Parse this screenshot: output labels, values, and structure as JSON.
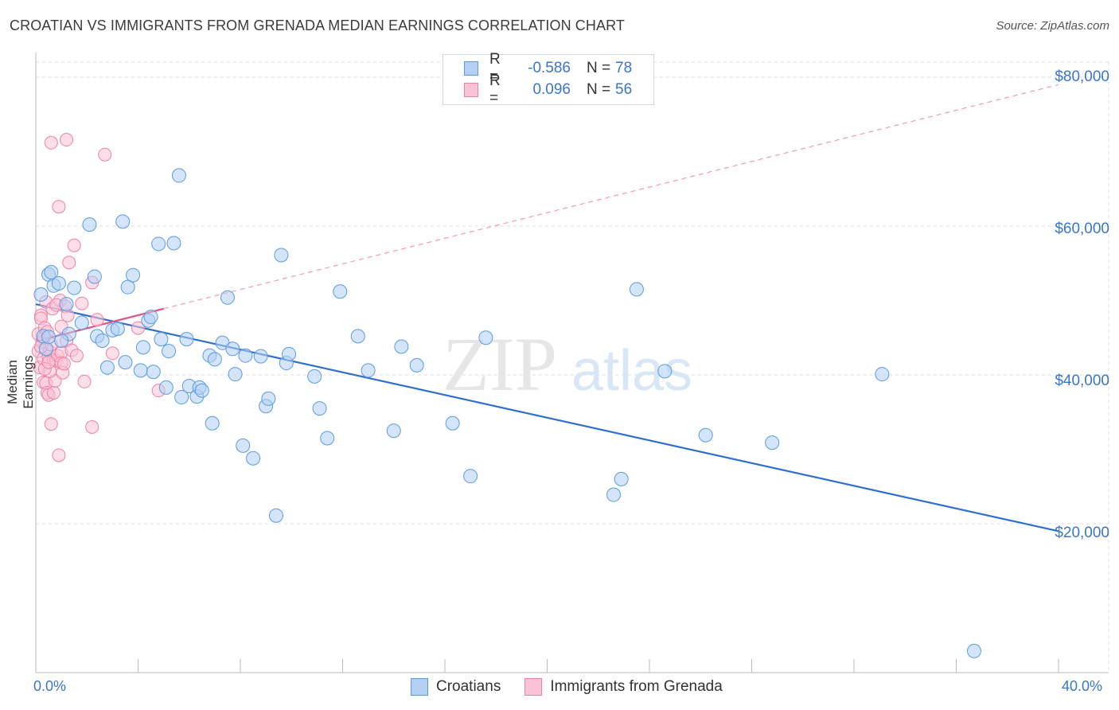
{
  "header": {
    "title": "CROATIAN VS IMMIGRANTS FROM GRENADA MEDIAN EARNINGS CORRELATION CHART",
    "source": "Source: ZipAtlas.com"
  },
  "colors": {
    "blue": "#5b9be0",
    "blue_fill": "#b3cff4",
    "blue_line": "#2f6fce",
    "pink": "#f080a8",
    "pink_fill": "#f9c3d5",
    "pink_line": "#e0508a",
    "axis_text": "#3a76c8",
    "grid": "#dddddd"
  },
  "legend_top": {
    "rows": [
      {
        "label": "R =",
        "r": "-0.586",
        "n_label": "N =",
        "n": "78"
      },
      {
        "label": "R =",
        "r": "0.096",
        "n_label": "N =",
        "n": "56"
      }
    ]
  },
  "legend_bottom": {
    "items": [
      "Croatians",
      "Immigrants from Grenada"
    ]
  },
  "watermark": {
    "zip": "ZIP",
    "atlas": "atlas"
  },
  "chart_data": {
    "type": "scatter",
    "title": "CROATIAN VS IMMIGRANTS FROM GRENADA MEDIAN EARNINGS CORRELATION CHART",
    "xlabel": "",
    "ylabel": "Median Earnings",
    "xlim": [
      0,
      40
    ],
    "ylim": [
      0,
      84000
    ],
    "x_tick_labels": [
      "0.0%",
      "40.0%"
    ],
    "y_ticks": [
      20000,
      40000,
      60000,
      80000
    ],
    "y_tick_labels": [
      "$20,000",
      "$40,000",
      "$60,000",
      "$80,000"
    ],
    "grid": true,
    "series": [
      {
        "name": "Croatians",
        "r": -0.586,
        "n": 78,
        "trend": {
          "x0": 0,
          "y0": 49500,
          "x1": 40,
          "y1": 19000
        },
        "points": [
          [
            0.2,
            50800
          ],
          [
            0.3,
            45200
          ],
          [
            0.4,
            43500
          ],
          [
            0.5,
            53500
          ],
          [
            0.6,
            53800
          ],
          [
            0.7,
            52000
          ],
          [
            0.9,
            52300
          ],
          [
            1.2,
            49500
          ],
          [
            1.3,
            45500
          ],
          [
            1.5,
            51700
          ],
          [
            1.8,
            47000
          ],
          [
            2.1,
            60200
          ],
          [
            2.3,
            53200
          ],
          [
            2.4,
            45200
          ],
          [
            2.6,
            44600
          ],
          [
            2.8,
            41000
          ],
          [
            3.0,
            46000
          ],
          [
            3.2,
            46200
          ],
          [
            3.4,
            60600
          ],
          [
            3.5,
            41700
          ],
          [
            3.6,
            51800
          ],
          [
            3.8,
            53400
          ],
          [
            4.1,
            40600
          ],
          [
            4.2,
            43700
          ],
          [
            4.4,
            47300
          ],
          [
            4.5,
            47800
          ],
          [
            4.6,
            40400
          ],
          [
            4.8,
            57600
          ],
          [
            4.9,
            44800
          ],
          [
            5.1,
            38300
          ],
          [
            5.2,
            43200
          ],
          [
            5.4,
            57700
          ],
          [
            5.6,
            66800
          ],
          [
            5.7,
            37000
          ],
          [
            5.9,
            44800
          ],
          [
            6.0,
            38500
          ],
          [
            6.3,
            37100
          ],
          [
            6.4,
            38300
          ],
          [
            6.5,
            37900
          ],
          [
            6.8,
            42600
          ],
          [
            6.9,
            33500
          ],
          [
            7.0,
            42100
          ],
          [
            7.3,
            44300
          ],
          [
            7.5,
            50400
          ],
          [
            7.7,
            43500
          ],
          [
            7.8,
            40100
          ],
          [
            8.2,
            42600
          ],
          [
            8.1,
            30500
          ],
          [
            8.5,
            28800
          ],
          [
            8.8,
            42500
          ],
          [
            9.0,
            35800
          ],
          [
            9.1,
            36800
          ],
          [
            9.4,
            21100
          ],
          [
            9.6,
            56100
          ],
          [
            9.8,
            41600
          ],
          [
            9.9,
            42800
          ],
          [
            10.9,
            39800
          ],
          [
            11.1,
            35500
          ],
          [
            11.4,
            31500
          ],
          [
            11.9,
            51200
          ],
          [
            12.6,
            45200
          ],
          [
            13.0,
            40600
          ],
          [
            14.0,
            32500
          ],
          [
            14.3,
            43800
          ],
          [
            14.9,
            41300
          ],
          [
            16.3,
            33500
          ],
          [
            17.0,
            26400
          ],
          [
            17.6,
            45000
          ],
          [
            22.6,
            23900
          ],
          [
            22.9,
            26000
          ],
          [
            23.5,
            51500
          ],
          [
            24.6,
            40500
          ],
          [
            26.2,
            31900
          ],
          [
            28.8,
            30900
          ],
          [
            33.1,
            40100
          ],
          [
            36.7,
            2900
          ],
          [
            0.5,
            45100
          ],
          [
            1.0,
            44600
          ]
        ]
      },
      {
        "name": "Immigrants from Grenada",
        "r": 0.096,
        "n": 56,
        "trend": {
          "x0": 0,
          "y0": 44500,
          "x1": 5,
          "y1": 48900
        },
        "trend_extension": {
          "x0": 5,
          "y0": 48900,
          "x1": 40,
          "y1": 79000
        },
        "points": [
          [
            0.1,
            45500
          ],
          [
            0.1,
            43200
          ],
          [
            0.15,
            41000
          ],
          [
            0.2,
            48000
          ],
          [
            0.2,
            47600
          ],
          [
            0.25,
            44400
          ],
          [
            0.3,
            42200
          ],
          [
            0.3,
            39000
          ],
          [
            0.35,
            46300
          ],
          [
            0.4,
            38900
          ],
          [
            0.4,
            49800
          ],
          [
            0.45,
            37600
          ],
          [
            0.5,
            37300
          ],
          [
            0.5,
            42400
          ],
          [
            0.55,
            43100
          ],
          [
            0.6,
            71200
          ],
          [
            0.6,
            33400
          ],
          [
            0.65,
            48900
          ],
          [
            0.7,
            42000
          ],
          [
            0.7,
            37600
          ],
          [
            0.75,
            39200
          ],
          [
            0.8,
            41900
          ],
          [
            0.85,
            42600
          ],
          [
            0.9,
            62600
          ],
          [
            0.9,
            29200
          ],
          [
            0.95,
            50000
          ],
          [
            1.0,
            43000
          ],
          [
            1.0,
            41600
          ],
          [
            1.05,
            40300
          ],
          [
            1.1,
            41500
          ],
          [
            1.15,
            49200
          ],
          [
            1.2,
            44600
          ],
          [
            1.2,
            71600
          ],
          [
            1.25,
            48000
          ],
          [
            1.3,
            55100
          ],
          [
            1.4,
            43300
          ],
          [
            1.5,
            57400
          ],
          [
            1.6,
            42600
          ],
          [
            1.8,
            49600
          ],
          [
            1.9,
            39100
          ],
          [
            2.2,
            33000
          ],
          [
            2.2,
            52400
          ],
          [
            2.4,
            47400
          ],
          [
            2.7,
            69600
          ],
          [
            3.0,
            42900
          ],
          [
            4.0,
            46300
          ],
          [
            4.8,
            37900
          ],
          [
            0.3,
            44900
          ],
          [
            0.45,
            45800
          ],
          [
            0.55,
            40500
          ],
          [
            0.8,
            49400
          ],
          [
            1.0,
            46500
          ],
          [
            0.2,
            43800
          ],
          [
            0.35,
            40800
          ],
          [
            0.6,
            44100
          ],
          [
            0.5,
            41700
          ]
        ]
      }
    ]
  }
}
